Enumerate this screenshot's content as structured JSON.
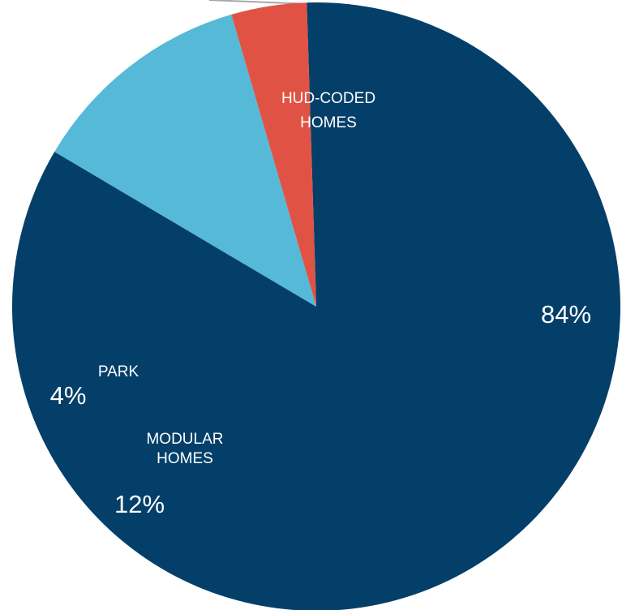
{
  "chart_data": {
    "type": "pie",
    "slices": [
      {
        "name": [
          "HUD-CODED",
          "HOMES"
        ],
        "percent_label": "84%",
        "value": 84,
        "color": "#043f69"
      },
      {
        "name": [
          "MODULAR",
          "HOMES"
        ],
        "percent_label": "12%",
        "value": 12,
        "color": "#55b9d7"
      },
      {
        "name": [
          "PARK"
        ],
        "percent_label": "4%",
        "value": 4,
        "color": "#e05344"
      }
    ]
  }
}
